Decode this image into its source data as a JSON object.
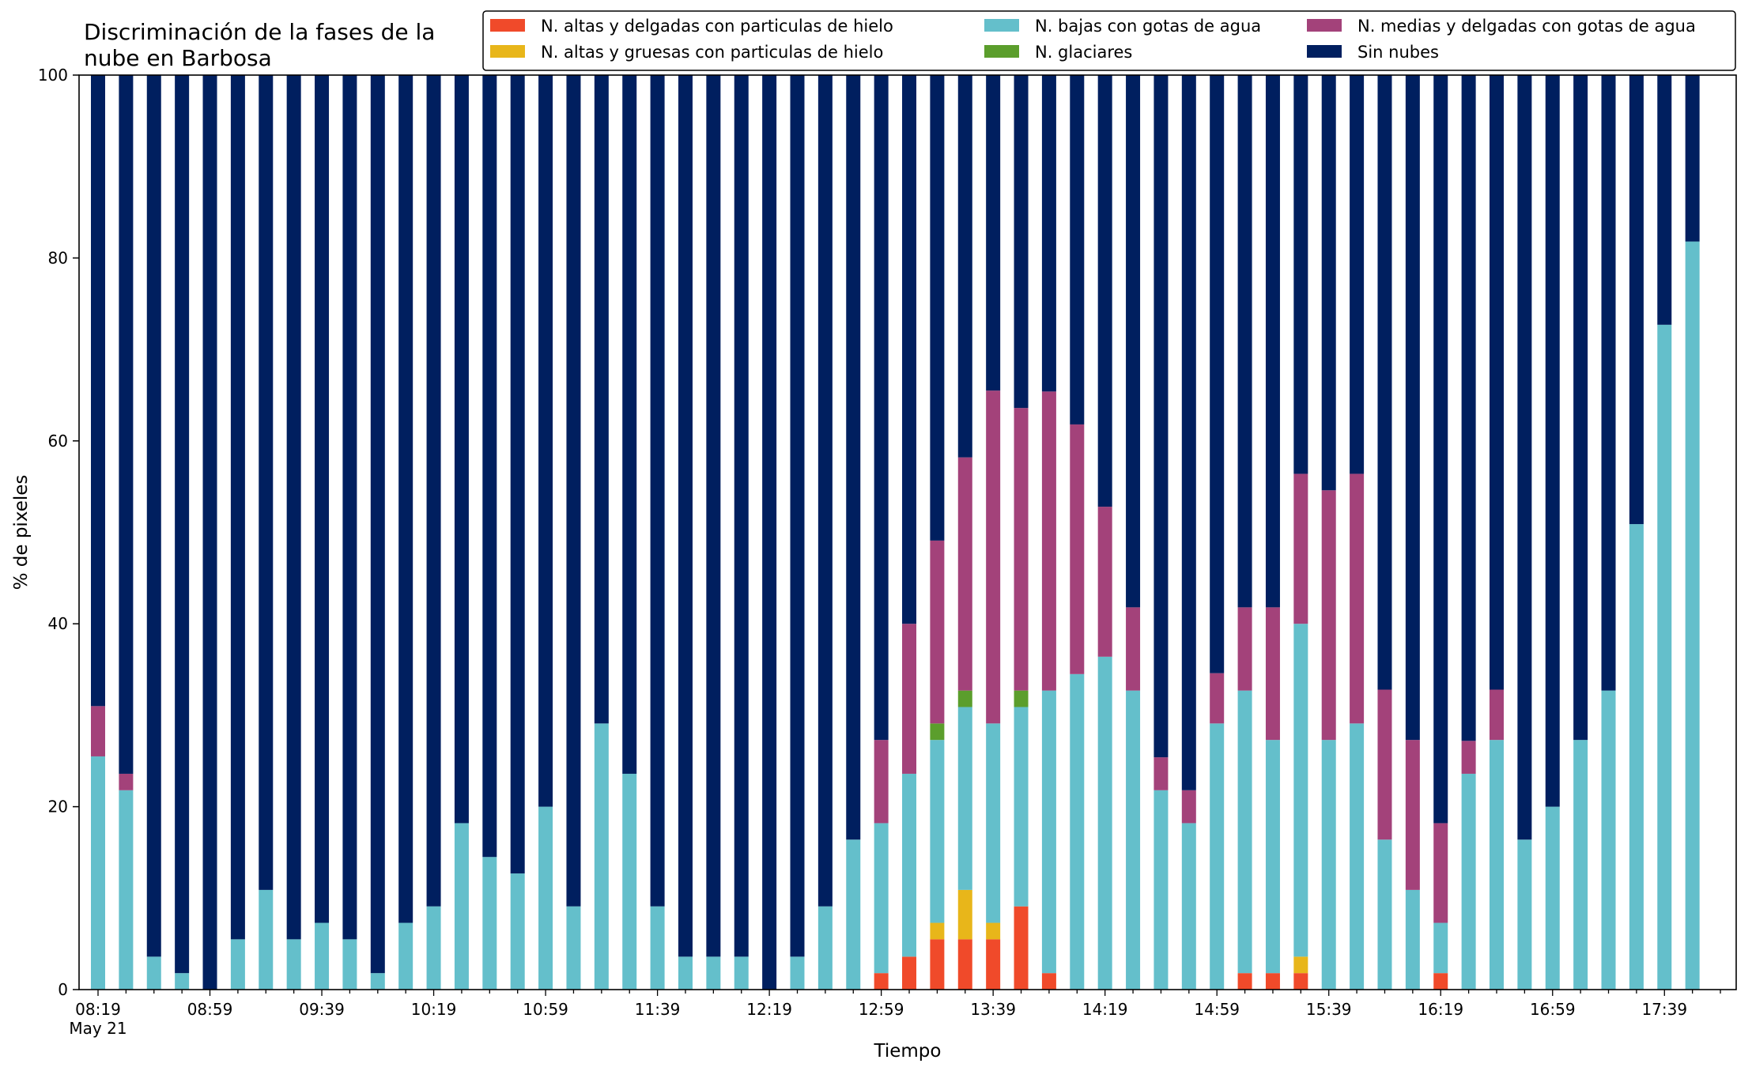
{
  "chart_data": {
    "type": "bar",
    "stacked": true,
    "title": "Discriminación de la fases de la\nnube en Barbosa",
    "xlabel": "Tiempo",
    "ylabel": "% de pixeles",
    "ylim": [
      0,
      100
    ],
    "yticks": [
      0,
      20,
      40,
      60,
      80,
      100
    ],
    "grid": false,
    "legend_position": "top-right",
    "x_tick_labels": [
      {
        "index": 0,
        "label": "08:19\nMay 21"
      },
      {
        "index": 4,
        "label": "08:59"
      },
      {
        "index": 8,
        "label": "09:39"
      },
      {
        "index": 12,
        "label": "10:19"
      },
      {
        "index": 16,
        "label": "10:59"
      },
      {
        "index": 20,
        "label": "11:39"
      },
      {
        "index": 24,
        "label": "12:19"
      },
      {
        "index": 28,
        "label": "12:59"
      },
      {
        "index": 32,
        "label": "13:39"
      },
      {
        "index": 36,
        "label": "14:19"
      },
      {
        "index": 40,
        "label": "14:59"
      },
      {
        "index": 44,
        "label": "15:39"
      },
      {
        "index": 48,
        "label": "16:19"
      },
      {
        "index": 52,
        "label": "16:59"
      },
      {
        "index": 56,
        "label": "17:39"
      }
    ],
    "categories": [
      "08:19",
      "08:29",
      "08:39",
      "08:49",
      "08:59",
      "09:09",
      "09:19",
      "09:29",
      "09:39",
      "09:49",
      "09:59",
      "10:09",
      "10:19",
      "10:29",
      "10:39",
      "10:49",
      "10:59",
      "11:09",
      "11:19",
      "11:29",
      "11:39",
      "11:49",
      "11:59",
      "12:09",
      "12:19",
      "12:29",
      "12:39",
      "12:49",
      "12:59",
      "13:09",
      "13:19",
      "13:29",
      "13:39",
      "13:49",
      "13:59",
      "14:09",
      "14:19",
      "14:29",
      "14:39",
      "14:49",
      "14:59",
      "15:09",
      "15:19",
      "15:29",
      "15:39",
      "15:49",
      "15:59",
      "16:09",
      "16:19",
      "16:29",
      "16:39",
      "16:49",
      "16:59",
      "17:09",
      "17:19",
      "17:29",
      "17:39",
      "17:49"
    ],
    "series": [
      {
        "name": "N. altas y delgadas con particulas de hielo",
        "color": "#f04a2a",
        "values": [
          0,
          0,
          0,
          0,
          0,
          0,
          0,
          0,
          0,
          0,
          0,
          0,
          0,
          0,
          0,
          0,
          0,
          0,
          0,
          0,
          0,
          0,
          0,
          0,
          0,
          0,
          0,
          0,
          1.8,
          3.6,
          5.5,
          5.5,
          5.5,
          9.1,
          1.8,
          0,
          0,
          0,
          0,
          0,
          0,
          1.8,
          1.8,
          1.8,
          0,
          0,
          0,
          0,
          1.8,
          0,
          0,
          0,
          0,
          0,
          0,
          0,
          0,
          0
        ]
      },
      {
        "name": "N. altas y gruesas con particulas de hielo",
        "color": "#e8b61a",
        "values": [
          0,
          0,
          0,
          0,
          0,
          0,
          0,
          0,
          0,
          0,
          0,
          0,
          0,
          0,
          0,
          0,
          0,
          0,
          0,
          0,
          0,
          0,
          0,
          0,
          0,
          0,
          0,
          0,
          0,
          0,
          1.8,
          5.4,
          1.8,
          0,
          0,
          0,
          0,
          0,
          0,
          0,
          0,
          0,
          0,
          1.8,
          0,
          0,
          0,
          0,
          0,
          0,
          0,
          0,
          0,
          0,
          0,
          0,
          0,
          0
        ]
      },
      {
        "name": "N. bajas con gotas de agua",
        "color": "#64bfcb",
        "values": [
          25.5,
          21.8,
          3.6,
          1.8,
          0,
          5.5,
          10.9,
          5.5,
          7.3,
          5.5,
          1.8,
          7.3,
          9.1,
          18.2,
          14.5,
          12.7,
          20.0,
          9.1,
          29.1,
          23.6,
          9.1,
          3.6,
          3.6,
          3.6,
          0,
          3.6,
          9.1,
          16.4,
          16.4,
          20.0,
          20.0,
          20.0,
          21.8,
          21.8,
          30.9,
          34.5,
          36.4,
          32.7,
          21.8,
          18.2,
          29.1,
          30.9,
          25.5,
          36.4,
          27.3,
          29.1,
          16.4,
          10.9,
          5.5,
          23.6,
          27.3,
          16.4,
          20.0,
          27.3,
          32.7,
          50.9,
          72.7,
          81.8
        ]
      },
      {
        "name": "N. glaciares",
        "color": "#5b9e2c",
        "values": [
          0,
          0,
          0,
          0,
          0,
          0,
          0,
          0,
          0,
          0,
          0,
          0,
          0,
          0,
          0,
          0,
          0,
          0,
          0,
          0,
          0,
          0,
          0,
          0,
          0,
          0,
          0,
          0,
          0,
          0,
          1.8,
          1.8,
          0,
          1.8,
          0,
          0,
          0,
          0,
          0,
          0,
          0,
          0,
          0,
          0,
          0,
          0,
          0,
          0,
          0,
          0,
          0,
          0,
          0,
          0,
          0,
          0,
          0,
          0
        ]
      },
      {
        "name": "N. medias y delgadas con gotas de agua",
        "color": "#a3427a",
        "values": [
          5.5,
          1.8,
          0,
          0,
          0,
          0,
          0,
          0,
          0,
          0,
          0,
          0,
          0,
          0,
          0,
          0,
          0,
          0,
          0,
          0,
          0,
          0,
          0,
          0,
          0,
          0,
          0,
          0,
          9.1,
          16.4,
          20.0,
          25.5,
          36.4,
          30.9,
          32.7,
          27.3,
          16.4,
          9.1,
          3.6,
          3.6,
          5.5,
          9.1,
          14.5,
          16.4,
          27.3,
          27.3,
          16.4,
          16.4,
          10.9,
          3.6,
          5.5,
          0,
          0,
          0,
          0,
          0,
          0,
          0
        ]
      },
      {
        "name": "Sin nubes",
        "color": "#001f5f",
        "values": [
          69.0,
          76.4,
          96.4,
          98.2,
          100,
          94.5,
          89.1,
          94.5,
          92.7,
          94.5,
          98.2,
          92.7,
          90.9,
          81.8,
          85.5,
          87.3,
          80.0,
          90.9,
          70.9,
          76.4,
          90.9,
          96.4,
          96.4,
          96.4,
          100,
          96.4,
          90.9,
          83.6,
          72.7,
          60.0,
          50.9,
          41.8,
          34.5,
          36.4,
          34.5,
          38.2,
          47.3,
          58.2,
          74.5,
          78.2,
          65.4,
          58.2,
          58.2,
          43.6,
          45.4,
          43.6,
          67.2,
          72.7,
          81.8,
          72.7,
          67.2,
          83.6,
          80.0,
          72.7,
          67.3,
          49.1,
          27.3,
          18.2
        ]
      }
    ]
  }
}
